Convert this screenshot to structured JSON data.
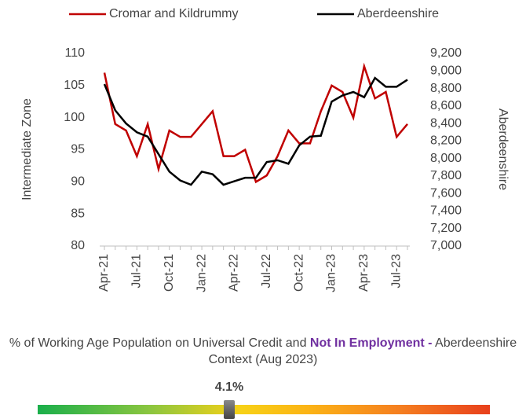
{
  "chart_data": {
    "type": "line",
    "categories": [
      "Apr-21",
      null,
      null,
      "Jul-21",
      null,
      null,
      "Oct-21",
      null,
      null,
      "Jan-22",
      null,
      null,
      "Apr-22",
      null,
      null,
      "Jul-22",
      null,
      null,
      "Oct-22",
      null,
      null,
      "Jan-23",
      null,
      null,
      "Apr-23",
      null,
      null,
      "Jul-23",
      null
    ],
    "series": [
      {
        "name": "Cromar and Kildrummy",
        "color": "#c00000",
        "values": [
          107,
          99,
          98,
          94,
          99,
          92,
          98,
          97,
          97,
          99,
          101,
          94,
          94,
          95,
          90,
          91,
          94,
          98,
          96,
          96,
          101,
          105,
          104,
          100,
          108,
          103,
          104,
          97,
          99
        ]
      },
      {
        "name": "Aberdeenshire",
        "color": "#000000",
        "axis": "y2",
        "values": [
          8850,
          8550,
          8400,
          8300,
          8250,
          8050,
          7850,
          7750,
          7700,
          7850,
          7820,
          7700,
          7740,
          7780,
          7780,
          7960,
          7980,
          7940,
          8150,
          8250,
          8260,
          8650,
          8720,
          8760,
          8700,
          8920,
          8820,
          8820,
          8900
        ]
      }
    ],
    "ylabel": "Intermediate Zone",
    "y2label": "Aberdeenshire",
    "ylim": [
      80,
      110
    ],
    "yticks": [
      80,
      85,
      90,
      95,
      100,
      105,
      110
    ],
    "y2lim": [
      7000,
      9200
    ],
    "y2ticks": [
      {
        "value": 7000,
        "label": "7,000"
      },
      {
        "value": 7200,
        "label": "7,200"
      },
      {
        "value": 7400,
        "label": "7,400"
      },
      {
        "value": 7600,
        "label": "7,600"
      },
      {
        "value": 7800,
        "label": "7,800"
      },
      {
        "value": 8000,
        "label": "8,000"
      },
      {
        "value": 8200,
        "label": "8,200"
      },
      {
        "value": 8400,
        "label": "8,400"
      },
      {
        "value": 8600,
        "label": "8,600"
      },
      {
        "value": 8800,
        "label": "8,800"
      },
      {
        "value": 9000,
        "label": "9,000"
      },
      {
        "value": 9200,
        "label": "9,200"
      }
    ],
    "legend": "top"
  },
  "context": {
    "title_start": "% of Working Age Population on Universal Credit and ",
    "title_bold": "Not In Employment -",
    "title_end": " Aberdeenshire Context (Aug 2023)",
    "gauge_label": "4.1%"
  }
}
